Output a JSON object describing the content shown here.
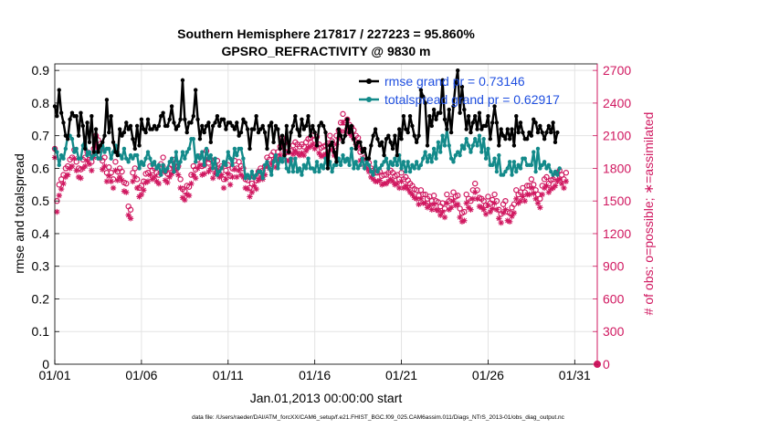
{
  "chart_data": {
    "type": "line",
    "title": "Southern Hemisphere 217817 / 227223 = 95.860%",
    "subtitle": "GPSRO_REFRACTIVITY @ 9830 m",
    "xlabel": "Jan.01,2013 00:00:00 start",
    "ylabel": "rmse and totalspread",
    "ylabel_right": "# of obs: o=possible; ∗=assimilated",
    "footer": "data file: /Users/raeder/DAI/ATM_forcXX/CAM6_setup/f.e21.FHIST_BGC.f09_025.CAM6assim.011/Diags_NTrS_2013-01/obs_diag_output.nc",
    "x_tick_labels": [
      "01/01",
      "01/06",
      "01/11",
      "01/16",
      "01/21",
      "01/26",
      "01/31"
    ],
    "x_tick_days": [
      1,
      6,
      11,
      16,
      21,
      26,
      31
    ],
    "xlim_days": [
      1,
      32.3
    ],
    "ylim": [
      0,
      0.92
    ],
    "y_ticks": [
      "0",
      "0.1",
      "0.2",
      "0.3",
      "0.4",
      "0.5",
      "0.6",
      "0.7",
      "0.8",
      "0.9"
    ],
    "y_tick_values": [
      0,
      0.1,
      0.2,
      0.3,
      0.4,
      0.5,
      0.6,
      0.7,
      0.8,
      0.9
    ],
    "ylim_right": [
      0,
      2760
    ],
    "y_ticks_right": [
      "0",
      "300",
      "600",
      "900",
      "1200",
      "1500",
      "1800",
      "2100",
      "2400",
      "2700"
    ],
    "y_tick_values_right": [
      0,
      300,
      600,
      900,
      1200,
      1500,
      1800,
      2100,
      2400,
      2700
    ],
    "grid": true,
    "legend_position": "top-right",
    "colors": {
      "rmse": "#000000",
      "spread": "#138a8a",
      "obs": "#d01860",
      "axis_right": "#d01860",
      "legend_text": "#1f4fe0"
    },
    "series": [
      {
        "name": "rmse grand pr = 0.73146",
        "values": [
          0.79,
          0.76,
          0.84,
          0.77,
          0.74,
          0.7,
          0.69,
          0.75,
          0.77,
          0.76,
          0.76,
          0.7,
          0.77,
          0.73,
          0.66,
          0.74,
          0.68,
          0.76,
          0.65,
          0.72,
          0.65,
          0.67,
          0.68,
          0.7,
          0.81,
          0.71,
          0.76,
          0.68,
          0.65,
          0.64,
          0.72,
          0.7,
          0.71,
          0.74,
          0.72,
          0.73,
          0.69,
          0.66,
          0.73,
          0.67,
          0.75,
          0.72,
          0.71,
          0.75,
          0.72,
          0.72,
          0.73,
          0.72,
          0.73,
          0.76,
          0.77,
          0.73,
          0.73,
          0.75,
          0.79,
          0.74,
          0.72,
          0.73,
          0.75,
          0.87,
          0.75,
          0.71,
          0.74,
          0.74,
          0.76,
          0.84,
          0.75,
          0.69,
          0.73,
          0.71,
          0.73,
          0.74,
          0.68,
          0.73,
          0.74,
          0.76,
          0.73,
          0.75,
          0.75,
          0.72,
          0.74,
          0.74,
          0.73,
          0.72,
          0.74,
          0.7,
          0.71,
          0.75,
          0.74,
          0.72,
          0.66,
          0.72,
          0.72,
          0.76,
          0.71,
          0.72,
          0.73,
          0.71,
          0.66,
          0.73,
          0.74,
          0.68,
          0.73,
          0.72,
          0.66,
          0.7,
          0.64,
          0.73,
          0.65,
          0.71,
          0.73,
          0.76,
          0.72,
          0.7,
          0.75,
          0.72,
          0.73,
          0.76,
          0.7,
          0.73,
          0.71,
          0.67,
          0.73,
          0.74,
          0.73,
          0.71,
          0.6,
          0.67,
          0.68,
          0.65,
          0.62,
          0.72,
          0.7,
          0.68,
          0.7,
          0.75,
          0.71,
          0.73,
          0.69,
          0.66,
          0.68,
          0.68,
          0.65,
          0.66,
          0.63,
          0.63,
          0.67,
          0.7,
          0.72,
          0.69,
          0.67,
          0.68,
          0.64,
          0.69,
          0.7,
          0.68,
          0.66,
          0.7,
          0.64,
          0.72,
          0.69,
          0.76,
          0.72,
          0.71,
          0.76,
          0.73,
          0.7,
          0.68,
          0.7,
          0.84,
          0.82,
          0.8,
          0.67,
          0.76,
          0.73,
          0.78,
          0.75,
          0.77,
          0.77,
          0.87,
          0.75,
          0.72,
          0.78,
          0.71,
          0.79,
          0.86,
          0.9,
          0.77,
          0.85,
          0.78,
          0.72,
          0.76,
          0.71,
          0.74,
          0.76,
          0.72,
          0.77,
          0.72,
          0.73,
          0.73,
          0.76,
          0.69,
          0.74,
          0.79,
          0.74,
          0.67,
          0.72,
          0.7,
          0.69,
          0.72,
          0.69,
          0.72,
          0.67,
          0.76,
          0.71,
          0.74,
          0.71,
          0.69,
          0.69,
          0.71,
          0.7,
          0.75,
          0.74,
          0.71,
          0.73,
          0.71,
          0.69,
          0.71,
          0.73,
          0.71,
          0.74,
          0.68,
          0.71
        ]
      },
      {
        "name": "totalspread grand pr = 0.62917",
        "values": [
          0.66,
          0.65,
          0.61,
          0.64,
          0.63,
          0.66,
          0.7,
          0.7,
          0.69,
          0.65,
          0.66,
          0.63,
          0.63,
          0.67,
          0.69,
          0.64,
          0.65,
          0.63,
          0.64,
          0.65,
          0.63,
          0.63,
          0.68,
          0.65,
          0.66,
          0.66,
          0.63,
          0.65,
          0.67,
          0.65,
          0.64,
          0.63,
          0.66,
          0.63,
          0.62,
          0.64,
          0.63,
          0.64,
          0.64,
          0.6,
          0.62,
          0.61,
          0.63,
          0.65,
          0.63,
          0.61,
          0.62,
          0.6,
          0.61,
          0.58,
          0.61,
          0.59,
          0.6,
          0.62,
          0.63,
          0.59,
          0.65,
          0.6,
          0.62,
          0.65,
          0.63,
          0.65,
          0.66,
          0.69,
          0.69,
          0.62,
          0.64,
          0.63,
          0.65,
          0.61,
          0.66,
          0.63,
          0.64,
          0.6,
          0.63,
          0.58,
          0.59,
          0.6,
          0.62,
          0.61,
          0.65,
          0.63,
          0.61,
          0.66,
          0.64,
          0.66,
          0.66,
          0.63,
          0.57,
          0.58,
          0.57,
          0.59,
          0.57,
          0.58,
          0.59,
          0.59,
          0.57,
          0.61,
          0.62,
          0.6,
          0.58,
          0.62,
          0.64,
          0.6,
          0.63,
          0.62,
          0.65,
          0.6,
          0.59,
          0.63,
          0.59,
          0.63,
          0.59,
          0.6,
          0.58,
          0.61,
          0.6,
          0.63,
          0.6,
          0.6,
          0.59,
          0.62,
          0.59,
          0.61,
          0.6,
          0.63,
          0.6,
          0.62,
          0.59,
          0.61,
          0.61,
          0.63,
          0.61,
          0.64,
          0.62,
          0.63,
          0.61,
          0.66,
          0.6,
          0.62,
          0.6,
          0.61,
          0.63,
          0.6,
          0.62,
          0.61,
          0.59,
          0.58,
          0.62,
          0.59,
          0.6,
          0.61,
          0.62,
          0.63,
          0.6,
          0.62,
          0.61,
          0.63,
          0.61,
          0.64,
          0.6,
          0.62,
          0.59,
          0.62,
          0.59,
          0.61,
          0.6,
          0.62,
          0.6,
          0.61,
          0.63,
          0.65,
          0.62,
          0.64,
          0.62,
          0.66,
          0.63,
          0.68,
          0.65,
          0.7,
          0.67,
          0.72,
          0.67,
          0.63,
          0.62,
          0.64,
          0.65,
          0.64,
          0.67,
          0.66,
          0.69,
          0.67,
          0.65,
          0.67,
          0.69,
          0.67,
          0.7,
          0.65,
          0.69,
          0.63,
          0.66,
          0.61,
          0.61,
          0.63,
          0.59,
          0.64,
          0.58,
          0.58,
          0.59,
          0.6,
          0.62,
          0.58,
          0.62,
          0.59,
          0.61,
          0.6,
          0.63,
          0.63,
          0.61,
          0.61,
          0.61,
          0.65,
          0.59,
          0.66,
          0.6,
          0.61,
          0.62,
          0.6,
          0.61,
          0.59,
          0.58,
          0.59,
          0.58,
          0.6
        ]
      },
      {
        "name": "possible",
        "axis": "right",
        "values": [
          1980,
          1500,
          1650,
          1700,
          1740,
          1800,
          1820,
          1880,
          1900,
          1970,
          1860,
          1800,
          1790,
          1880,
          1900,
          1950,
          1920,
          1860,
          1980,
          2100,
          2060,
          1970,
          1870,
          1900,
          1760,
          1810,
          1760,
          1700,
          1860,
          1770,
          1800,
          1770,
          1670,
          1660,
          1450,
          1420,
          1760,
          1800,
          1700,
          1620,
          1640,
          1680,
          1750,
          1760,
          1820,
          1780,
          1800,
          1760,
          1740,
          1840,
          1900,
          1770,
          1750,
          1800,
          1830,
          1880,
          1860,
          1820,
          1700,
          1610,
          1590,
          1640,
          1630,
          1740,
          1820,
          1790,
          1880,
          1910,
          1820,
          1830,
          1960,
          1850,
          1880,
          1790,
          1830,
          1870,
          1800,
          1820,
          1700,
          1780,
          1830,
          1730,
          1800,
          1870,
          1800,
          1860,
          1820,
          1800,
          1700,
          1690,
          1620,
          1660,
          1720,
          1690,
          1770,
          1800,
          1780,
          1820,
          1900,
          1880,
          1920,
          1950,
          1890,
          1950,
          2000,
          2080,
          2030,
          1950,
          1950,
          1960,
          2010,
          2040,
          2020,
          2000,
          2020,
          2000,
          2040,
          2070,
          2080,
          2100,
          2060,
          2090,
          2020,
          1990,
          2000,
          2010,
          2030,
          2100,
          2050,
          2000,
          2100,
          2150,
          2220,
          2300,
          2220,
          2250,
          2200,
          2180,
          2150,
          2100,
          2080,
          1950,
          1970,
          1900,
          1880,
          1850,
          1800,
          1780,
          1760,
          1760,
          1770,
          1730,
          1740,
          1740,
          1760,
          1780,
          1760,
          1730,
          1740,
          1700,
          1760,
          1700,
          1720,
          1690,
          1660,
          1640,
          1610,
          1600,
          1550,
          1600,
          1560,
          1560,
          1520,
          1540,
          1500,
          1550,
          1500,
          1490,
          1450,
          1480,
          1430,
          1560,
          1500,
          1520,
          1580,
          1540,
          1550,
          1430,
          1390,
          1400,
          1560,
          1520,
          1500,
          1600,
          1660,
          1600,
          1530,
          1520,
          1500,
          1460,
          1540,
          1480,
          1510,
          1560,
          1500,
          1420,
          1380,
          1470,
          1500,
          1400,
          1390,
          1440,
          1470,
          1600,
          1560,
          1580,
          1620,
          1580,
          1640,
          1640,
          1700,
          1650,
          1600,
          1560,
          1520,
          1640,
          1700,
          1720,
          1660,
          1690,
          1700,
          1720,
          1760,
          1780,
          1740,
          1700,
          1760
        ]
      },
      {
        "name": "assimilated",
        "axis": "right",
        "values": [
          1900,
          1400,
          1550,
          1610,
          1660,
          1720,
          1740,
          1800,
          1820,
          1890,
          1780,
          1720,
          1710,
          1800,
          1820,
          1870,
          1840,
          1780,
          1900,
          2020,
          1980,
          1890,
          1790,
          1820,
          1680,
          1730,
          1680,
          1620,
          1780,
          1690,
          1720,
          1690,
          1590,
          1580,
          1370,
          1340,
          1680,
          1720,
          1620,
          1540,
          1560,
          1600,
          1670,
          1680,
          1740,
          1700,
          1720,
          1680,
          1660,
          1760,
          1820,
          1690,
          1670,
          1720,
          1750,
          1800,
          1780,
          1740,
          1620,
          1530,
          1510,
          1560,
          1550,
          1660,
          1740,
          1710,
          1800,
          1830,
          1740,
          1750,
          1880,
          1770,
          1800,
          1710,
          1750,
          1790,
          1720,
          1740,
          1620,
          1700,
          1750,
          1650,
          1720,
          1790,
          1720,
          1780,
          1740,
          1720,
          1620,
          1610,
          1540,
          1580,
          1640,
          1610,
          1690,
          1720,
          1700,
          1740,
          1820,
          1800,
          1840,
          1870,
          1810,
          1870,
          1920,
          2000,
          1950,
          1870,
          1870,
          1880,
          1930,
          1960,
          1940,
          1920,
          1940,
          1920,
          1960,
          1990,
          2000,
          2020,
          1980,
          2010,
          1940,
          1910,
          1920,
          1930,
          1950,
          2020,
          1970,
          1920,
          2020,
          2070,
          2140,
          2220,
          2140,
          2170,
          2120,
          2100,
          2070,
          2020,
          2000,
          1870,
          1890,
          1820,
          1800,
          1770,
          1720,
          1700,
          1680,
          1680,
          1690,
          1650,
          1660,
          1660,
          1680,
          1700,
          1680,
          1650,
          1660,
          1620,
          1680,
          1620,
          1640,
          1610,
          1580,
          1560,
          1530,
          1520,
          1470,
          1520,
          1480,
          1480,
          1440,
          1460,
          1420,
          1470,
          1420,
          1410,
          1370,
          1400,
          1350,
          1480,
          1420,
          1440,
          1500,
          1460,
          1470,
          1350,
          1310,
          1320,
          1480,
          1440,
          1420,
          1520,
          1580,
          1520,
          1450,
          1440,
          1420,
          1380,
          1460,
          1400,
          1430,
          1480,
          1420,
          1340,
          1300,
          1390,
          1420,
          1320,
          1310,
          1360,
          1390,
          1520,
          1480,
          1500,
          1540,
          1500,
          1560,
          1560,
          1620,
          1570,
          1520,
          1480,
          1440,
          1560,
          1620,
          1640,
          1580,
          1610,
          1620,
          1640,
          1680,
          1700,
          1660,
          1620,
          1680
        ]
      }
    ],
    "x_start_day": 1,
    "x_step_days": 0.125
  }
}
